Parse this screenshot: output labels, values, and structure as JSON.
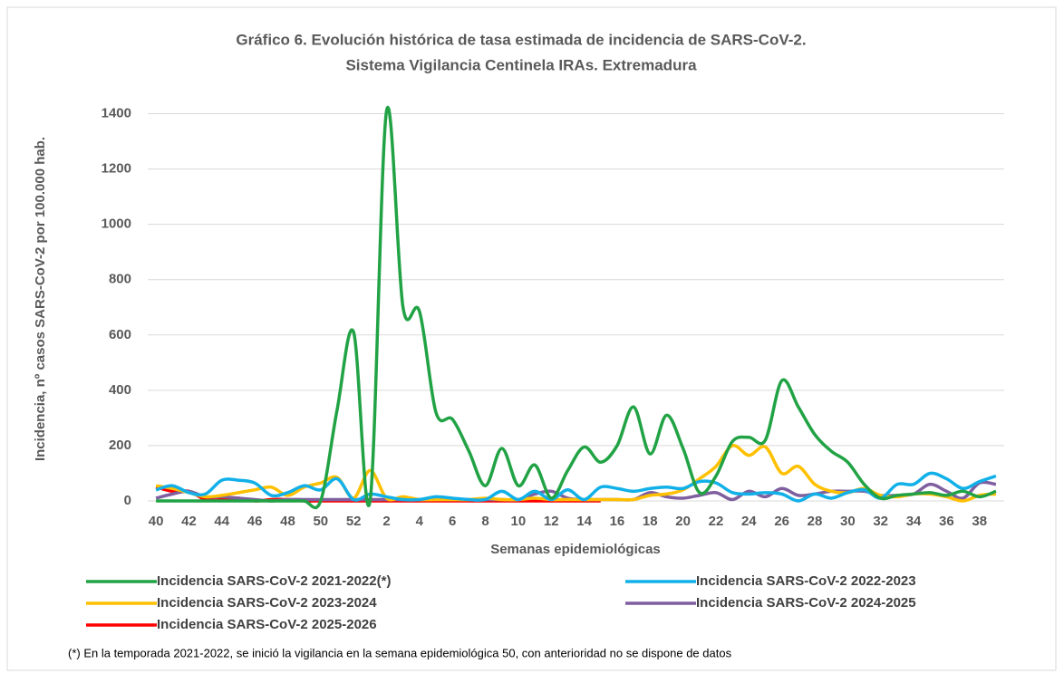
{
  "chart_data": {
    "type": "line",
    "title": "Gráfico 6. Evolución histórica de tasa estimada de  incidencia de SARS-CoV-2.",
    "subtitle": "Sistema Vigilancia Centinela IRAs. Extremadura",
    "x_label": "Semanas epidemiológicas",
    "y_label": "Incidencia, nº casos SARS-CoV-2 por 100.000 hab.",
    "note": "(*) En la temporada 2021-2022, se inició la vigilancia en la semana epidemiológica 50, con anterioridad no se dispone de datos",
    "categories": [
      40,
      null,
      42,
      null,
      44,
      null,
      46,
      null,
      48,
      null,
      50,
      null,
      52,
      null,
      2,
      null,
      4,
      null,
      6,
      null,
      8,
      null,
      10,
      null,
      12,
      null,
      14,
      null,
      16,
      null,
      18,
      null,
      20,
      null,
      22,
      null,
      24,
      null,
      26,
      null,
      28,
      null,
      30,
      null,
      32,
      null,
      34,
      null,
      36,
      null,
      38,
      null
    ],
    "ylim": [
      0,
      1500
    ],
    "yticks": [
      0,
      200,
      400,
      600,
      800,
      1000,
      1200,
      1400
    ],
    "grid": true,
    "legend": "bottom",
    "series": [
      {
        "name": "Incidencia SARS-CoV-2 2021-2022(*)",
        "color": "#21a345",
        "values": [
          0,
          0,
          0,
          0,
          0,
          0,
          0,
          0,
          0,
          0,
          0,
          330,
          610,
          0,
          1410,
          700,
          685,
          320,
          295,
          180,
          55,
          190,
          55,
          130,
          10,
          110,
          195,
          140,
          200,
          340,
          170,
          310,
          190,
          30,
          90,
          215,
          230,
          220,
          435,
          340,
          240,
          180,
          140,
          60,
          10,
          20,
          25,
          30,
          20,
          35,
          15,
          35
        ]
      },
      {
        "name": "Incidencia SARS-CoV-2 2022-2023",
        "color": "#12b0e8",
        "values": [
          40,
          55,
          30,
          25,
          75,
          75,
          65,
          20,
          30,
          55,
          40,
          80,
          5,
          25,
          15,
          5,
          5,
          15,
          10,
          5,
          5,
          35,
          5,
          35,
          5,
          40,
          5,
          50,
          45,
          35,
          45,
          50,
          45,
          70,
          65,
          30,
          25,
          30,
          25,
          0,
          25,
          10,
          30,
          40,
          10,
          60,
          60,
          100,
          80,
          45,
          70,
          90
        ]
      },
      {
        "name": "Incidencia SARS-CoV-2 2023-2024",
        "color": "#ffc000",
        "values": [
          55,
          45,
          30,
          15,
          20,
          30,
          40,
          50,
          20,
          50,
          65,
          85,
          10,
          110,
          10,
          15,
          5,
          5,
          5,
          5,
          10,
          5,
          5,
          10,
          5,
          5,
          5,
          5,
          5,
          5,
          20,
          25,
          40,
          80,
          125,
          200,
          165,
          195,
          100,
          125,
          60,
          35,
          30,
          45,
          20,
          15,
          25,
          25,
          15,
          0,
          20,
          25
        ]
      },
      {
        "name": "Incidencia SARS-CoV-2 2024-2025",
        "color": "#7f5f9f",
        "values": [
          10,
          25,
          35,
          15,
          15,
          10,
          5,
          0,
          5,
          5,
          5,
          5,
          5,
          5,
          5,
          5,
          5,
          5,
          5,
          5,
          5,
          5,
          5,
          25,
          35,
          10,
          5,
          5,
          5,
          5,
          30,
          15,
          10,
          20,
          30,
          5,
          35,
          15,
          45,
          20,
          25,
          35,
          35,
          35,
          20,
          20,
          25,
          60,
          35,
          10,
          65,
          60
        ]
      },
      {
        "name": "Incidencia SARS-CoV-2 2025-2026",
        "color": "#ff0000",
        "values": [
          50,
          35,
          35,
          5,
          5,
          10,
          0,
          5,
          5,
          0,
          0,
          0,
          0,
          0,
          0,
          0,
          0,
          0,
          0,
          0,
          0,
          0,
          0,
          0,
          0,
          0,
          0,
          0,
          null,
          null,
          null,
          null,
          null,
          null,
          null,
          null,
          null,
          null,
          null,
          null,
          null,
          null,
          null,
          null,
          null,
          null,
          null,
          null,
          null,
          null,
          null,
          null
        ]
      }
    ]
  }
}
